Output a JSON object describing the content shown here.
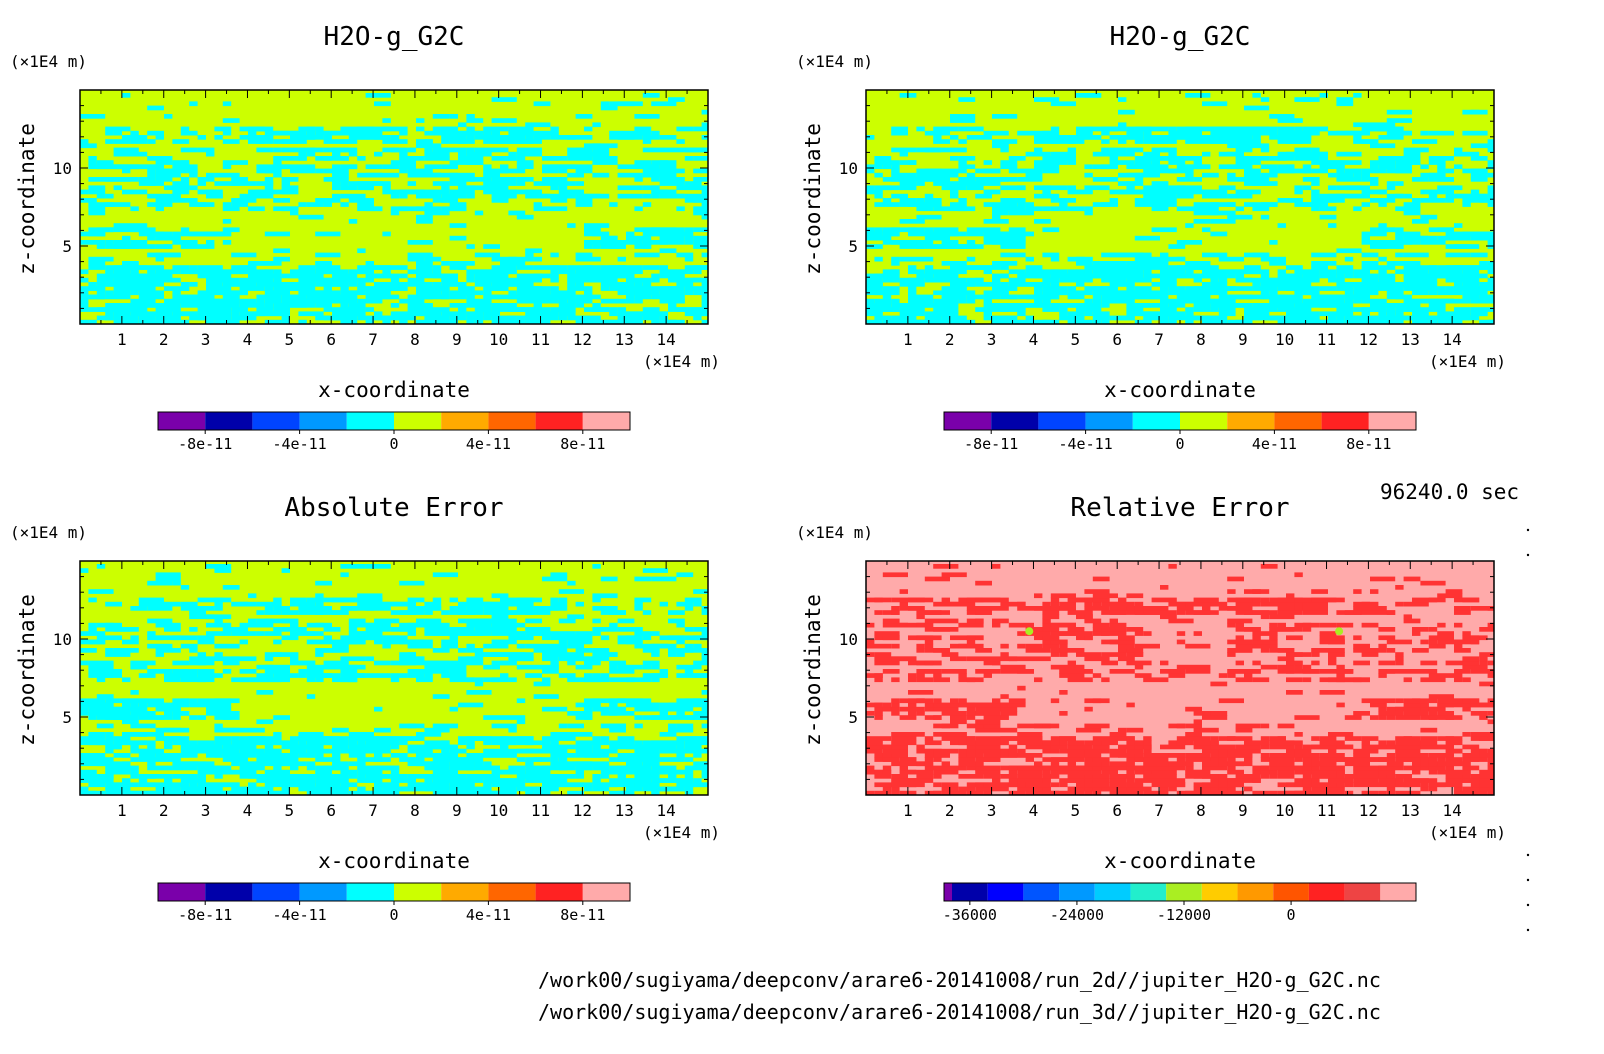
{
  "footer": {
    "time_label": "96240.0 sec",
    "path_1": "/work00/sugiyama/deepconv/arare6-20141008/run_2d//jupiter_H2O-g_G2C.nc",
    "path_2": "/work00/sugiyama/deepconv/arare6-20141008/run_3d//jupiter_H2O-g_G2C.nc"
  },
  "colors": {
    "field": "#ccff00",
    "anomaly": "#00ffff",
    "rel_field": "#ffaaaa",
    "rel_anomaly": "#ff3333",
    "rel_spot": "#aaee22"
  },
  "chart_data": [
    {
      "type": "heatmap",
      "title": "H2O-g_G2C",
      "xlabel": "x-coordinate",
      "ylabel": "z-coordinate",
      "x_unit": "(×1E4 m)",
      "y_unit": "(×1E4 m)",
      "xlim": [
        0,
        15
      ],
      "ylim": [
        0,
        15
      ],
      "x_ticks": [
        "1",
        "2",
        "3",
        "4",
        "5",
        "6",
        "7",
        "8",
        "9",
        "10",
        "11",
        "12",
        "13",
        "14"
      ],
      "y_ticks": [
        "5",
        "10"
      ],
      "colorbar": {
        "colors": [
          "#7a00aa",
          "#0000aa",
          "#0044ff",
          "#0099ff",
          "#00ffff",
          "#ccff00",
          "#ffaa00",
          "#ff6600",
          "#ff2222",
          "#ffaaaa"
        ],
        "labels": [
          "-8e-11",
          "-4e-11",
          "0",
          "4e-11",
          "8e-11"
        ],
        "label_positions": [
          1,
          3,
          5,
          7,
          9
        ]
      }
    },
    {
      "type": "heatmap",
      "title": "H2O-g_G2C",
      "xlabel": "x-coordinate",
      "ylabel": "z-coordinate",
      "x_unit": "(×1E4 m)",
      "y_unit": "(×1E4 m)",
      "xlim": [
        0,
        15
      ],
      "ylim": [
        0,
        15
      ],
      "x_ticks": [
        "1",
        "2",
        "3",
        "4",
        "5",
        "6",
        "7",
        "8",
        "9",
        "10",
        "11",
        "12",
        "13",
        "14"
      ],
      "y_ticks": [
        "5",
        "10"
      ],
      "colorbar": {
        "colors": [
          "#7a00aa",
          "#0000aa",
          "#0044ff",
          "#0099ff",
          "#00ffff",
          "#ccff00",
          "#ffaa00",
          "#ff6600",
          "#ff2222",
          "#ffaaaa"
        ],
        "labels": [
          "-8e-11",
          "-4e-11",
          "0",
          "4e-11",
          "8e-11"
        ],
        "label_positions": [
          1,
          3,
          5,
          7,
          9
        ]
      }
    },
    {
      "type": "heatmap",
      "title": "Absolute Error",
      "xlabel": "x-coordinate",
      "ylabel": "z-coordinate",
      "x_unit": "(×1E4 m)",
      "y_unit": "(×1E4 m)",
      "xlim": [
        0,
        15
      ],
      "ylim": [
        0,
        15
      ],
      "x_ticks": [
        "1",
        "2",
        "3",
        "4",
        "5",
        "6",
        "7",
        "8",
        "9",
        "10",
        "11",
        "12",
        "13",
        "14"
      ],
      "y_ticks": [
        "5",
        "10"
      ],
      "colorbar": {
        "colors": [
          "#7a00aa",
          "#0000aa",
          "#0044ff",
          "#0099ff",
          "#00ffff",
          "#ccff00",
          "#ffaa00",
          "#ff6600",
          "#ff2222",
          "#ffaaaa"
        ],
        "labels": [
          "-8e-11",
          "-4e-11",
          "0",
          "4e-11",
          "8e-11"
        ],
        "label_positions": [
          1,
          3,
          5,
          7,
          9
        ]
      }
    },
    {
      "type": "heatmap",
      "title": "Relative Error",
      "xlabel": "x-coordinate",
      "ylabel": "z-coordinate",
      "x_unit": "(×1E4 m)",
      "y_unit": "(×1E4 m)",
      "xlim": [
        0,
        15
      ],
      "ylim": [
        0,
        15
      ],
      "x_ticks": [
        "1",
        "2",
        "3",
        "4",
        "5",
        "6",
        "7",
        "8",
        "9",
        "10",
        "11",
        "12",
        "13",
        "14"
      ],
      "y_ticks": [
        "5",
        "10"
      ],
      "colorbar": {
        "colors": [
          "#7a00aa",
          "#0000aa",
          "#0000ff",
          "#0055ff",
          "#0099ff",
          "#00ccff",
          "#22eecc",
          "#aaee22",
          "#ffcc00",
          "#ff9900",
          "#ff5500",
          "#ff2222",
          "#ee4444",
          "#ffaaaa"
        ],
        "labels": [
          "-36000",
          "-24000",
          "-12000",
          "0"
        ],
        "label_positions": [
          1.5,
          4.5,
          7.5,
          10.5
        ],
        "note": "first colour segment drawn narrow"
      }
    }
  ]
}
